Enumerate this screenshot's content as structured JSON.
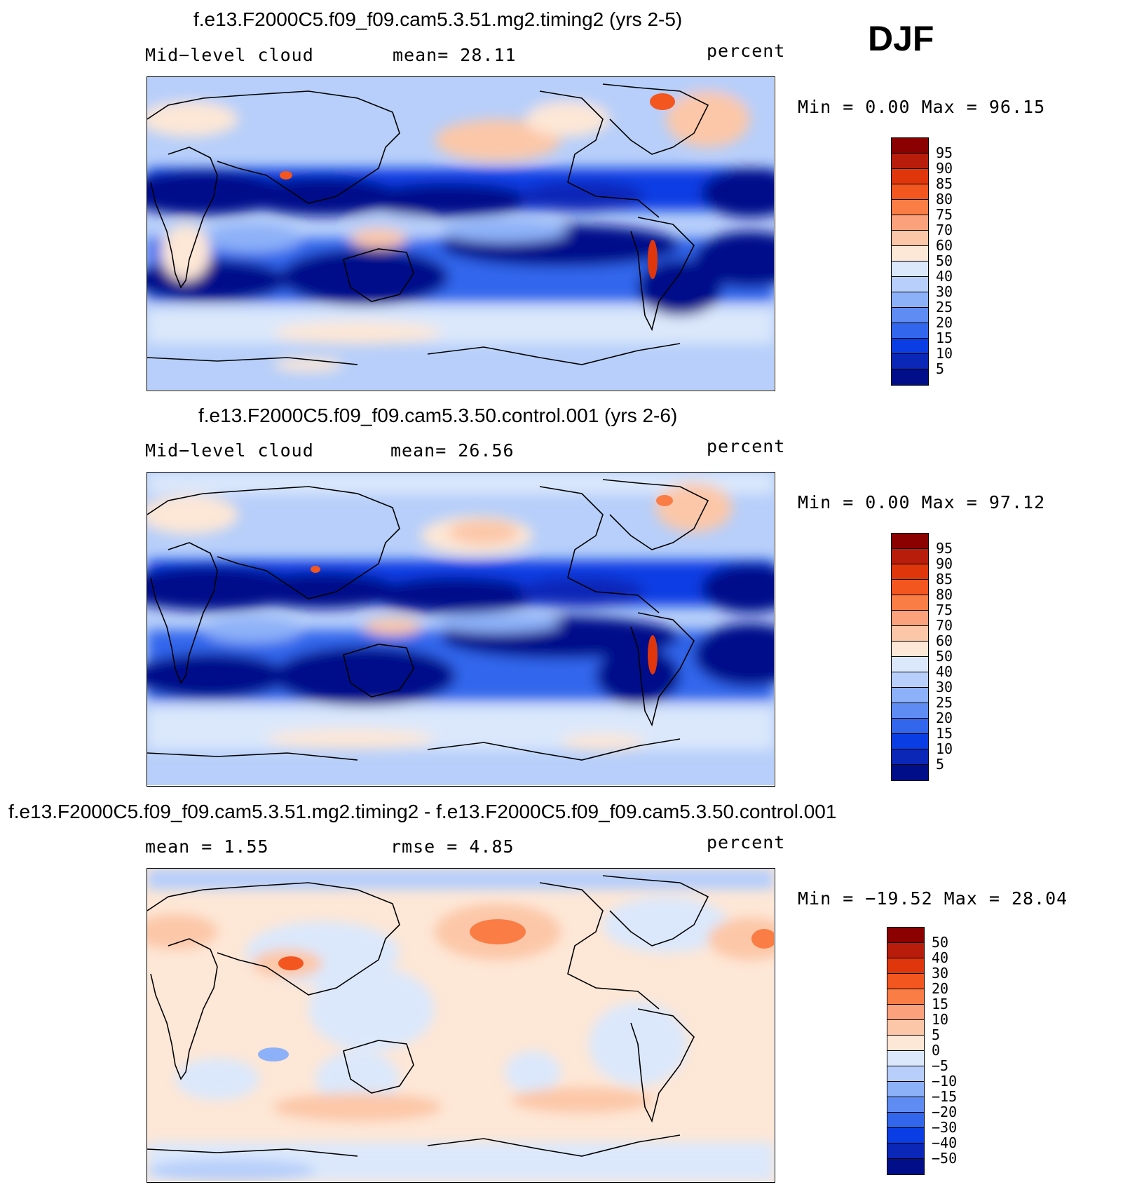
{
  "season": "DJF",
  "panels": [
    {
      "title": "f.e13.F2000C5.f09_f09.cam5.3.51.mg2.timing2 (yrs 2-5)",
      "left_label": "Mid−level cloud",
      "mid_label": "mean=  28.11",
      "right_label": "percent",
      "minmax": "Min =    0.00 Max =   96.15",
      "kind": "abs"
    },
    {
      "title": "f.e13.F2000C5.f09_f09.cam5.3.50.control.001 (yrs 2-6)",
      "left_label": "Mid−level cloud",
      "mid_label": "mean=  26.56",
      "right_label": "percent",
      "minmax": "Min =    0.00 Max =   97.12",
      "kind": "abs"
    },
    {
      "title": "f.e13.F2000C5.f09_f09.cam5.3.51.mg2.timing2 - f.e13.F2000C5.f09_f09.cam5.3.50.control.001",
      "left_label": "mean =   1.55",
      "mid_label": "rmse =   4.85",
      "right_label": "percent",
      "minmax": "Min = −19.52 Max =   28.04",
      "kind": "diff"
    }
  ],
  "colorbars": {
    "abs": {
      "labels": [
        "95",
        "90",
        "85",
        "80",
        "75",
        "70",
        "60",
        "50",
        "40",
        "30",
        "25",
        "20",
        "15",
        "10",
        "5"
      ],
      "colors": [
        "#8b0000",
        "#b81d0c",
        "#e0360c",
        "#f3561f",
        "#fa7d45",
        "#fba27d",
        "#fcc7a8",
        "#fde7d6",
        "#dbe8fb",
        "#b7cffa",
        "#8db1f8",
        "#5f8cf3",
        "#3266ec",
        "#0a3ee4",
        "#0a27b8",
        "#000e8a"
      ]
    },
    "diff": {
      "labels": [
        "50",
        "40",
        "30",
        "20",
        "15",
        "10",
        "5",
        "0",
        "−5",
        "−10",
        "−15",
        "−20",
        "−30",
        "−40",
        "−50"
      ],
      "colors": [
        "#8b0000",
        "#b81d0c",
        "#e0360c",
        "#f3561f",
        "#fa7d45",
        "#fba27d",
        "#fcc7a8",
        "#fde7d6",
        "#dbe8fb",
        "#b7cffa",
        "#8db1f8",
        "#5f8cf3",
        "#3266ec",
        "#0a3ee4",
        "#0a27b8",
        "#000e8a"
      ]
    }
  },
  "chart_data": [
    {
      "type": "heatmap",
      "title": "f.e13.F2000C5.f09_f09.cam5.3.51.mg2.timing2 (yrs 2-5)",
      "variable": "Mid-level cloud",
      "units": "percent",
      "season": "DJF",
      "mean": 28.11,
      "min": 0.0,
      "max": 96.15,
      "contour_levels": [
        5,
        10,
        15,
        20,
        25,
        30,
        40,
        50,
        60,
        70,
        75,
        80,
        85,
        90,
        95
      ]
    },
    {
      "type": "heatmap",
      "title": "f.e13.F2000C5.f09_f09.cam5.3.50.control.001 (yrs 2-6)",
      "variable": "Mid-level cloud",
      "units": "percent",
      "season": "DJF",
      "mean": 26.56,
      "min": 0.0,
      "max": 97.12,
      "contour_levels": [
        5,
        10,
        15,
        20,
        25,
        30,
        40,
        50,
        60,
        70,
        75,
        80,
        85,
        90,
        95
      ]
    },
    {
      "type": "heatmap",
      "title": "f.e13.F2000C5.f09_f09.cam5.3.51.mg2.timing2 - f.e13.F2000C5.f09_f09.cam5.3.50.control.001",
      "units": "percent",
      "season": "DJF",
      "mean": 1.55,
      "rmse": 4.85,
      "min": -19.52,
      "max": 28.04,
      "contour_levels": [
        -50,
        -40,
        -30,
        -20,
        -15,
        -10,
        -5,
        0,
        5,
        10,
        15,
        20,
        30,
        40,
        50
      ]
    }
  ]
}
